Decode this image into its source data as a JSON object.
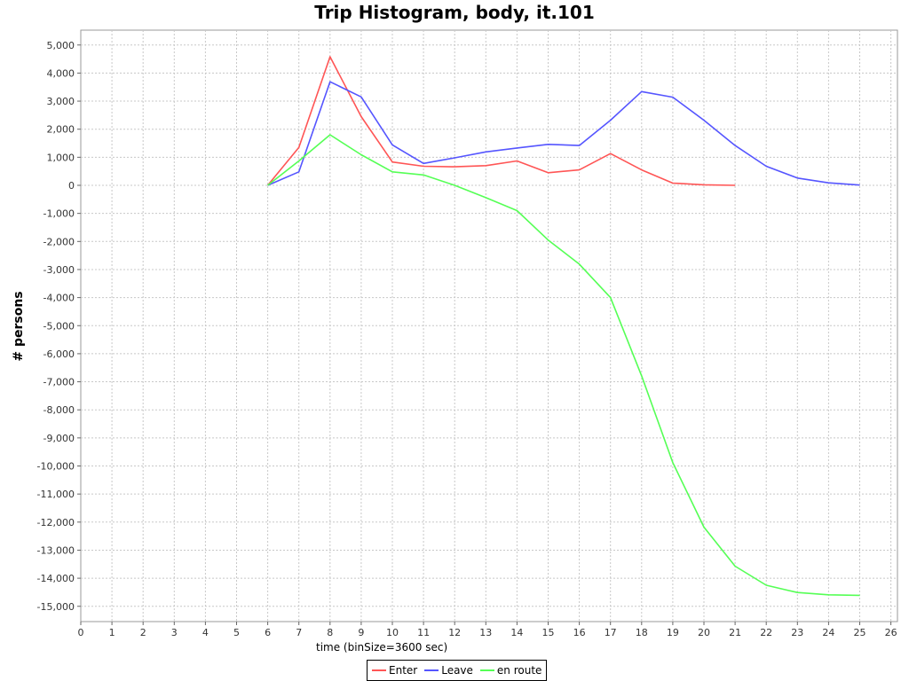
{
  "chart_data": {
    "type": "line",
    "title": "Trip Histogram, body, it.101",
    "xlabel": "time (binSize=3600 sec)",
    "ylabel": "# persons",
    "xlim": [
      0,
      26
    ],
    "ylim": [
      -15500,
      5500
    ],
    "xticks": [
      0,
      1,
      2,
      3,
      4,
      5,
      6,
      7,
      8,
      9,
      10,
      11,
      12,
      13,
      14,
      15,
      16,
      17,
      18,
      19,
      20,
      21,
      22,
      23,
      24,
      25,
      26
    ],
    "yticks": [
      5000,
      4000,
      3000,
      2000,
      1000,
      0,
      -1000,
      -2000,
      -3000,
      -4000,
      -5000,
      -6000,
      -7000,
      -8000,
      -9000,
      -10000,
      -11000,
      -12000,
      -13000,
      -14000,
      -15000
    ],
    "ytick_labels": [
      "5,000",
      "4,000",
      "3,000",
      "2,000",
      "1,000",
      "0",
      "-1,000",
      "-2,000",
      "-3,000",
      "-4,000",
      "-5,000",
      "-6,000",
      "-7,000",
      "-8,000",
      "-9,000",
      "-10,000",
      "-11,000",
      "-12,000",
      "-13,000",
      "-14,000",
      "-15,000"
    ],
    "grid": true,
    "legend_position": "bottom",
    "series": [
      {
        "name": "Enter",
        "color": "#ff5555",
        "x": [
          6,
          7,
          8,
          9,
          10,
          11,
          12,
          13,
          14,
          15,
          16,
          17,
          18,
          19,
          20,
          21
        ],
        "y": [
          0,
          1350,
          4580,
          2450,
          830,
          680,
          660,
          700,
          870,
          450,
          550,
          1130,
          550,
          80,
          20,
          0
        ]
      },
      {
        "name": "Leave",
        "color": "#5555ff",
        "x": [
          6,
          7,
          8,
          9,
          10,
          11,
          12,
          13,
          14,
          15,
          16,
          17,
          18,
          19,
          20,
          21,
          22,
          23,
          24,
          25
        ],
        "y": [
          0,
          480,
          3690,
          3150,
          1440,
          780,
          980,
          1190,
          1330,
          1460,
          1420,
          2320,
          3340,
          3140,
          2320,
          1420,
          680,
          260,
          90,
          10
        ]
      },
      {
        "name": "en route",
        "color": "#55ff55",
        "x": [
          6,
          7,
          8,
          9,
          10,
          11,
          12,
          13,
          14,
          15,
          16,
          17,
          18,
          19,
          20,
          21,
          22,
          23,
          24,
          25
        ],
        "y": [
          0,
          870,
          1800,
          1090,
          480,
          370,
          0,
          -440,
          -900,
          -1950,
          -2810,
          -4000,
          -6790,
          -9880,
          -12180,
          -13570,
          -14250,
          -14510,
          -14590,
          -14610
        ]
      }
    ]
  }
}
